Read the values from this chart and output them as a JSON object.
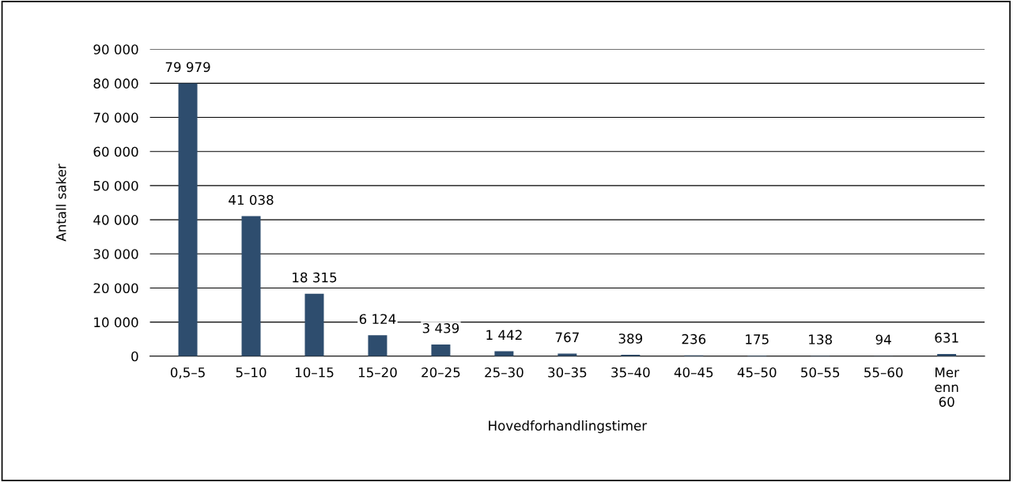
{
  "chart_data": {
    "type": "bar",
    "xlabel": "Hovedforhandlingstimer",
    "ylabel": "Antall saker",
    "categories": [
      "0,5–5",
      "5–10",
      "10–15",
      "15–20",
      "20–25",
      "25–30",
      "30–35",
      "35–40",
      "40–45",
      "45–50",
      "50–55",
      "55–60",
      "Mer enn 60"
    ],
    "values": [
      79979,
      41038,
      18315,
      6124,
      3439,
      1442,
      767,
      389,
      236,
      175,
      138,
      94,
      631
    ],
    "value_labels": [
      "79 979",
      "41 038",
      "18 315",
      "6 124",
      "3 439",
      "1 442",
      "767",
      "389",
      "236",
      "175",
      "138",
      "94",
      "631"
    ],
    "color": "#2e4d6e",
    "ylim": [
      0,
      90000
    ],
    "yticks": [
      0,
      {
        "value": 10000,
        "label": "10 000"
      },
      {
        "value": 20000,
        "label": "20 000"
      },
      {
        "value": 30000,
        "label": "30 000"
      },
      {
        "value": 40000,
        "label": "40 000"
      },
      {
        "value": 50000,
        "label": "50 000"
      },
      {
        "value": 60000,
        "label": "60 000"
      },
      {
        "value": 70000,
        "label": "70 000"
      },
      {
        "value": 80000,
        "label": "80 000"
      },
      {
        "value": 90000,
        "label": "90 000"
      }
    ],
    "grid": "y"
  }
}
